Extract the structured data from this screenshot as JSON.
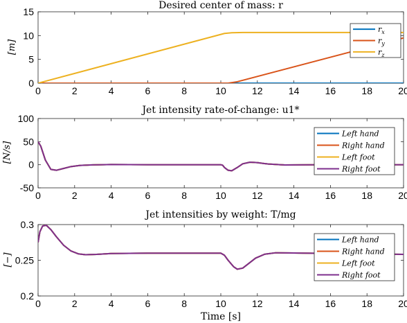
{
  "chart_data": [
    {
      "type": "line",
      "title": "Desired center of mass: r",
      "ylabel": "[m]",
      "xlabel": "",
      "xlim": [
        0,
        20
      ],
      "ylim": [
        0,
        15
      ],
      "xticks": [
        0,
        2,
        4,
        6,
        8,
        10,
        12,
        14,
        16,
        18,
        20
      ],
      "yticks": [
        0,
        5,
        10,
        15
      ],
      "yticklabels": [
        "0",
        "5",
        "10",
        "15"
      ],
      "grid": false,
      "legend_position": "top-right",
      "series": [
        {
          "name": "r_x",
          "color": "#0072BD",
          "x": [
            0,
            20
          ],
          "y": [
            0,
            0
          ]
        },
        {
          "name": "r_y",
          "color": "#D95319",
          "x": [
            0,
            10.4,
            10.9,
            20
          ],
          "y": [
            0,
            0,
            0.3,
            9.5
          ]
        },
        {
          "name": "r_z",
          "color": "#EDB120",
          "x": [
            0,
            10.2,
            10.6,
            11.2,
            20
          ],
          "y": [
            0,
            10.45,
            10.6,
            10.65,
            10.65
          ]
        }
      ]
    },
    {
      "type": "line",
      "title": "Jet intensity rate-of-change: u1*",
      "ylabel": "[N/s]",
      "xlabel": "",
      "xlim": [
        0,
        20
      ],
      "ylim": [
        -50,
        100
      ],
      "xticks": [
        0,
        2,
        4,
        6,
        8,
        10,
        12,
        14,
        16,
        18,
        20
      ],
      "yticks": [
        -50,
        0,
        50,
        100
      ],
      "yticklabels": [
        "-50",
        "0",
        "50",
        "100"
      ],
      "grid": false,
      "legend_position": "top-right",
      "series": [
        {
          "name": "Left hand",
          "color": "#0072BD",
          "x": [
            0,
            0.15,
            0.4,
            0.7,
            1.0,
            1.4,
            1.8,
            2.3,
            3.0,
            4.0,
            6.0,
            8.0,
            10.0,
            10.1,
            10.2,
            10.4,
            10.6,
            10.9,
            11.2,
            11.6,
            12.0,
            12.6,
            13.5,
            15.0,
            20.0
          ],
          "y": [
            50,
            40,
            10,
            -10,
            -12,
            -8,
            -4,
            -1.5,
            -0.3,
            0.5,
            0,
            0,
            0,
            -1,
            -6,
            -12,
            -13,
            -6,
            2,
            5.5,
            4.5,
            1.5,
            -0.5,
            -0.2,
            0
          ]
        },
        {
          "name": "Right hand",
          "color": "#D95319",
          "x": [
            0,
            0.15,
            0.4,
            0.7,
            1.0,
            1.4,
            1.8,
            2.3,
            3.0,
            4.0,
            6.0,
            8.0,
            10.0,
            10.1,
            10.2,
            10.4,
            10.6,
            10.9,
            11.2,
            11.6,
            12.0,
            12.6,
            13.5,
            15.0,
            20.0
          ],
          "y": [
            50,
            40,
            10,
            -10,
            -12,
            -8,
            -4,
            -1.5,
            -0.3,
            0.5,
            0,
            0,
            0,
            -1,
            -6,
            -12,
            -13,
            -6,
            2,
            5.5,
            4.5,
            1.5,
            -0.5,
            -0.2,
            0
          ]
        },
        {
          "name": "Left foot",
          "color": "#EDB120",
          "x": [
            0,
            0.15,
            0.4,
            0.7,
            1.0,
            1.4,
            1.8,
            2.3,
            3.0,
            4.0,
            6.0,
            8.0,
            10.0,
            10.1,
            10.2,
            10.4,
            10.6,
            10.9,
            11.2,
            11.6,
            12.0,
            12.6,
            13.5,
            15.0,
            20.0
          ],
          "y": [
            50,
            40,
            10,
            -10,
            -12,
            -8,
            -4,
            -1.5,
            -0.3,
            0.5,
            0,
            0,
            0,
            -1,
            -6,
            -12,
            -13,
            -6,
            2,
            5.5,
            4.5,
            1.5,
            -0.5,
            -0.2,
            0
          ]
        },
        {
          "name": "Right foot",
          "color": "#7E2F8E",
          "x": [
            0,
            0.15,
            0.4,
            0.7,
            1.0,
            1.4,
            1.8,
            2.3,
            3.0,
            4.0,
            6.0,
            8.0,
            10.0,
            10.1,
            10.2,
            10.4,
            10.6,
            10.9,
            11.2,
            11.6,
            12.0,
            12.6,
            13.5,
            15.0,
            20.0
          ],
          "y": [
            50,
            40,
            10,
            -10,
            -12,
            -8,
            -4,
            -1.5,
            -0.3,
            0.5,
            0,
            0,
            0,
            -1,
            -6,
            -12,
            -13,
            -6,
            2,
            5.5,
            4.5,
            1.5,
            -0.5,
            -0.2,
            0
          ]
        }
      ]
    },
    {
      "type": "line",
      "title": "Jet intensities by weight: T/mg",
      "ylabel": "[−]",
      "xlabel": "Time [s]",
      "xlim": [
        0,
        20
      ],
      "ylim": [
        0.2,
        0.3
      ],
      "xticks": [
        0,
        2,
        4,
        6,
        8,
        10,
        12,
        14,
        16,
        18,
        20
      ],
      "yticks": [
        0.2,
        0.25,
        0.3
      ],
      "yticklabels": [
        "0.2",
        "0.25",
        "0.3"
      ],
      "grid": false,
      "legend_position": "top-right",
      "series": [
        {
          "name": "Left hand",
          "color": "#0072BD",
          "x": [
            0,
            0.1,
            0.25,
            0.45,
            0.7,
            1.0,
            1.4,
            1.8,
            2.2,
            2.6,
            3.2,
            4.0,
            6.0,
            8.0,
            10.0,
            10.2,
            10.4,
            10.7,
            10.9,
            11.2,
            11.5,
            11.9,
            12.4,
            13.0,
            14.0,
            16.0,
            20.0
          ],
          "y": [
            0.275,
            0.29,
            0.298,
            0.299,
            0.293,
            0.283,
            0.271,
            0.263,
            0.259,
            0.2578,
            0.2583,
            0.2595,
            0.26,
            0.26,
            0.26,
            0.257,
            0.25,
            0.241,
            0.2375,
            0.239,
            0.245,
            0.253,
            0.2585,
            0.2605,
            0.2602,
            0.2595,
            0.2583
          ]
        },
        {
          "name": "Right hand",
          "color": "#D95319",
          "x": [
            0,
            0.1,
            0.25,
            0.45,
            0.7,
            1.0,
            1.4,
            1.8,
            2.2,
            2.6,
            3.2,
            4.0,
            6.0,
            8.0,
            10.0,
            10.2,
            10.4,
            10.7,
            10.9,
            11.2,
            11.5,
            11.9,
            12.4,
            13.0,
            14.0,
            16.0,
            20.0
          ],
          "y": [
            0.275,
            0.29,
            0.298,
            0.299,
            0.293,
            0.283,
            0.271,
            0.263,
            0.259,
            0.2578,
            0.2583,
            0.2595,
            0.26,
            0.26,
            0.26,
            0.257,
            0.25,
            0.241,
            0.2375,
            0.239,
            0.245,
            0.253,
            0.2585,
            0.2605,
            0.2602,
            0.2595,
            0.2583
          ]
        },
        {
          "name": "Left foot",
          "color": "#EDB120",
          "x": [
            0,
            0.1,
            0.25,
            0.45,
            0.7,
            1.0,
            1.4,
            1.8,
            2.2,
            2.6,
            3.2,
            4.0,
            6.0,
            8.0,
            10.0,
            10.2,
            10.4,
            10.7,
            10.9,
            11.2,
            11.5,
            11.9,
            12.4,
            13.0,
            14.0,
            16.0,
            20.0
          ],
          "y": [
            0.275,
            0.29,
            0.298,
            0.299,
            0.293,
            0.283,
            0.271,
            0.263,
            0.259,
            0.2578,
            0.2583,
            0.2595,
            0.26,
            0.26,
            0.26,
            0.257,
            0.25,
            0.241,
            0.2375,
            0.239,
            0.245,
            0.253,
            0.2585,
            0.2605,
            0.2602,
            0.2595,
            0.2583
          ]
        },
        {
          "name": "Right foot",
          "color": "#7E2F8E",
          "x": [
            0,
            0.1,
            0.25,
            0.45,
            0.7,
            1.0,
            1.4,
            1.8,
            2.2,
            2.6,
            3.2,
            4.0,
            6.0,
            8.0,
            10.0,
            10.2,
            10.4,
            10.7,
            10.9,
            11.2,
            11.5,
            11.9,
            12.4,
            13.0,
            14.0,
            16.0,
            20.0
          ],
          "y": [
            0.275,
            0.29,
            0.298,
            0.299,
            0.293,
            0.283,
            0.271,
            0.263,
            0.259,
            0.2578,
            0.2583,
            0.2595,
            0.26,
            0.26,
            0.26,
            0.257,
            0.25,
            0.241,
            0.2375,
            0.239,
            0.245,
            0.253,
            0.2585,
            0.2605,
            0.2602,
            0.2595,
            0.2583
          ]
        }
      ]
    }
  ]
}
